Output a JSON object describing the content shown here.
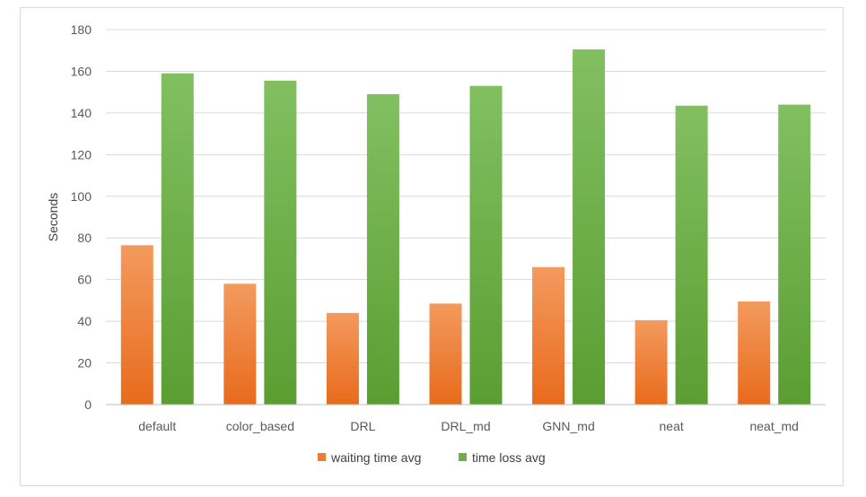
{
  "chart_data": {
    "type": "bar",
    "title": "",
    "xlabel": "",
    "ylabel": "Seconds",
    "ylim": [
      0,
      180
    ],
    "yticks": [
      0,
      20,
      40,
      60,
      80,
      100,
      120,
      140,
      160,
      180
    ],
    "grid": true,
    "legend_position": "bottom",
    "categories": [
      "default",
      "color_based",
      "DRL",
      "DRL_md",
      "GNN_md",
      "neat",
      "neat_md"
    ],
    "series": [
      {
        "name": "waiting time avg",
        "color": "#ED7D31",
        "values": [
          76.5,
          58,
          44,
          48.5,
          66,
          40.5,
          49.5
        ]
      },
      {
        "name": "time loss avg",
        "color": "#70AD47",
        "values": [
          159,
          155.5,
          149,
          153,
          170.5,
          143.5,
          144
        ]
      }
    ]
  }
}
